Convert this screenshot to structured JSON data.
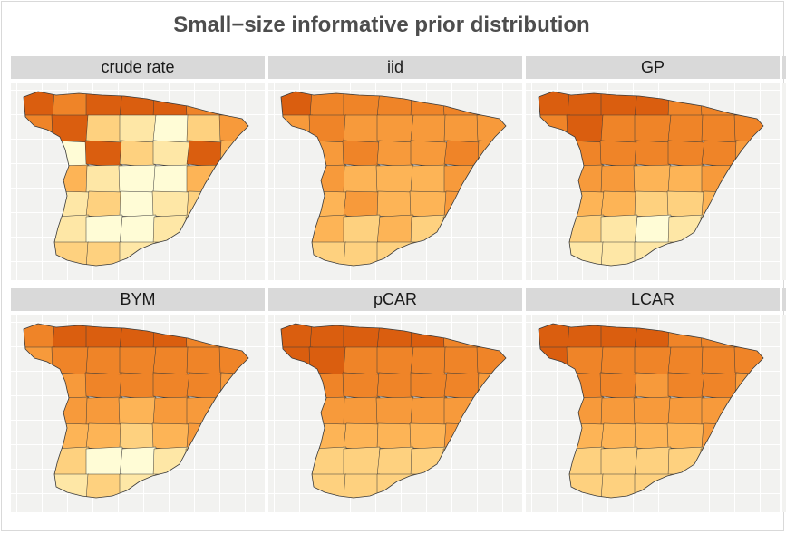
{
  "title": "Small−size informative prior distribution",
  "colors": {
    "c1": "#fffcd6",
    "c2": "#fee7a6",
    "c3": "#fed17f",
    "c4": "#fdb456",
    "c5": "#f79a3b",
    "c6": "#ef8428",
    "c7": "#da5e0f",
    "border": "#3a3a3a",
    "panel_bg": "#f2f2f0"
  },
  "panels": [
    {
      "label": "crude rate",
      "colormap": [
        7,
        6,
        7,
        7,
        7,
        6,
        5,
        6,
        7,
        3,
        2,
        1,
        3,
        5,
        4,
        1,
        7,
        3,
        2,
        7,
        4,
        3,
        4,
        2,
        1,
        1,
        4,
        6,
        3,
        2,
        3,
        1,
        2,
        3,
        4,
        3,
        2,
        1,
        1,
        2,
        3,
        0,
        2,
        3,
        3,
        2,
        3,
        0,
        0
      ]
    },
    {
      "label": "iid",
      "colormap": [
        7,
        6,
        6,
        6,
        6,
        6,
        5,
        5,
        6,
        5,
        5,
        5,
        5,
        5,
        5,
        5,
        6,
        5,
        5,
        6,
        5,
        5,
        5,
        4,
        4,
        4,
        5,
        6,
        4,
        4,
        5,
        4,
        4,
        5,
        5,
        3,
        4,
        3,
        4,
        3,
        4,
        0,
        3,
        3,
        3,
        3,
        4,
        0,
        0
      ]
    },
    {
      "label": "GP",
      "colormap": [
        7,
        7,
        7,
        7,
        6,
        6,
        6,
        6,
        7,
        6,
        6,
        6,
        6,
        6,
        6,
        6,
        6,
        6,
        6,
        6,
        5,
        5,
        5,
        5,
        4,
        4,
        5,
        6,
        4,
        4,
        4,
        3,
        3,
        4,
        5,
        3,
        3,
        2,
        1,
        2,
        3,
        0,
        2,
        2,
        2,
        2,
        3,
        0,
        0
      ]
    },
    {
      "label": "BYM",
      "colormap": [
        6,
        7,
        7,
        7,
        7,
        6,
        6,
        5,
        6,
        6,
        6,
        6,
        6,
        6,
        5,
        5,
        6,
        6,
        6,
        6,
        5,
        5,
        5,
        5,
        4,
        5,
        5,
        6,
        3,
        4,
        4,
        3,
        4,
        5,
        5,
        3,
        3,
        1,
        1,
        2,
        3,
        0,
        2,
        2,
        3,
        2,
        3,
        0,
        0
      ]
    },
    {
      "label": "pCAR",
      "colormap": [
        7,
        7,
        7,
        7,
        7,
        6,
        6,
        7,
        7,
        6,
        6,
        6,
        6,
        6,
        6,
        6,
        6,
        6,
        6,
        6,
        5,
        5,
        5,
        5,
        5,
        5,
        5,
        6,
        4,
        4,
        4,
        4,
        4,
        5,
        5,
        3,
        3,
        3,
        3,
        3,
        4,
        0,
        3,
        3,
        3,
        3,
        4,
        0,
        0
      ]
    },
    {
      "label": "LCAR",
      "colormap": [
        7,
        7,
        7,
        7,
        6,
        6,
        6,
        7,
        6,
        6,
        6,
        6,
        6,
        6,
        6,
        6,
        6,
        5,
        6,
        6,
        5,
        5,
        5,
        5,
        5,
        5,
        5,
        6,
        3,
        4,
        4,
        4,
        4,
        5,
        5,
        3,
        3,
        3,
        3,
        3,
        4,
        0,
        2,
        3,
        3,
        3,
        4,
        0,
        0
      ]
    }
  ]
}
